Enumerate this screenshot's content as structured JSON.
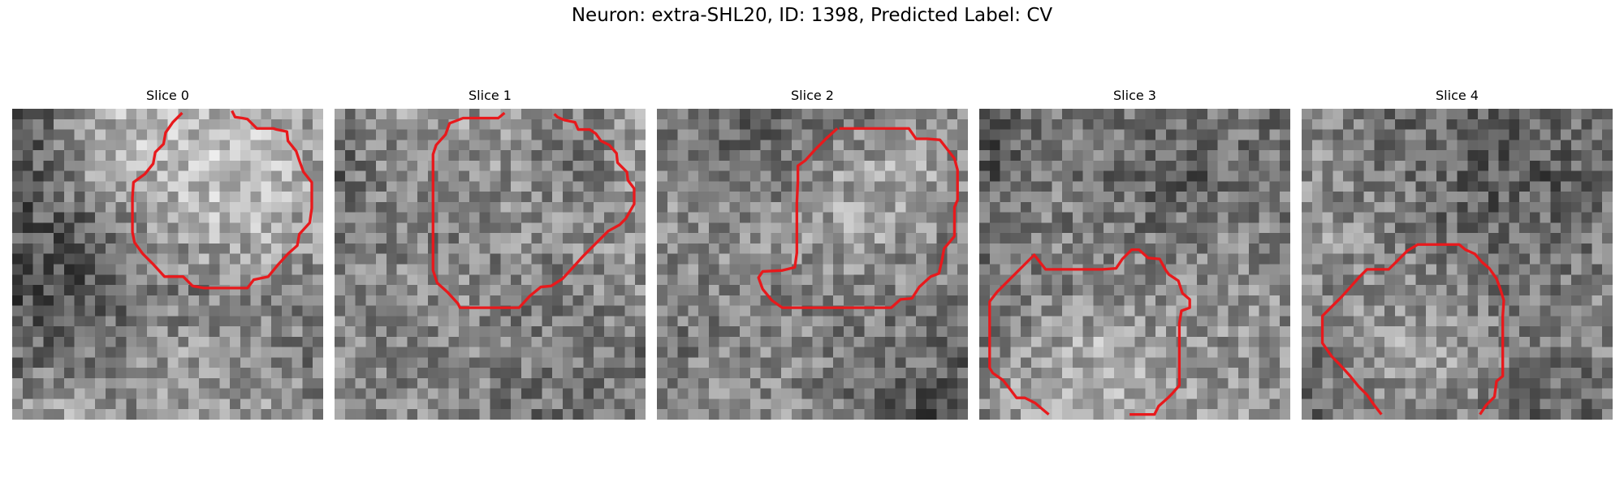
{
  "figure": {
    "title": "Neuron: extra-SHL20, ID: 1398, Predicted Label: CV",
    "contour_color": "#e8191c",
    "image_colormap": "gray"
  },
  "slices": [
    {
      "label": "Slice 0"
    },
    {
      "label": "Slice 1"
    },
    {
      "label": "Slice 2"
    },
    {
      "label": "Slice 3"
    },
    {
      "label": "Slice 4"
    }
  ]
}
